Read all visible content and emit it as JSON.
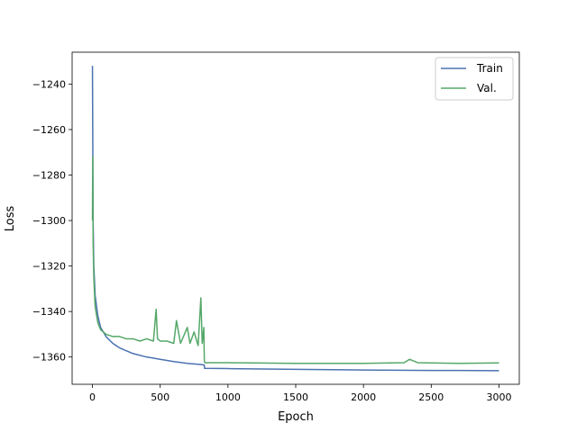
{
  "chart_data": {
    "type": "line",
    "title": "",
    "xlabel": "Epoch",
    "ylabel": "Loss",
    "xlim": [
      -150,
      3150
    ],
    "ylim": [
      -1372,
      -1226
    ],
    "xticks": [
      0,
      500,
      1000,
      1500,
      2000,
      2500,
      3000
    ],
    "xtick_labels": [
      "0",
      "500",
      "1000",
      "1500",
      "2000",
      "2500",
      "3000"
    ],
    "yticks": [
      -1240,
      -1260,
      -1280,
      -1300,
      -1320,
      -1340,
      -1360
    ],
    "ytick_labels": [
      "−1240",
      "−1260",
      "−1280",
      "−1300",
      "−1320",
      "−1340",
      "−1360"
    ],
    "legend_position": "top-right",
    "grid": false,
    "series": [
      {
        "name": "Train",
        "color": "#4c72b0",
        "x": [
          0,
          2,
          5,
          10,
          20,
          40,
          60,
          100,
          150,
          200,
          300,
          400,
          500,
          600,
          700,
          800,
          825,
          827,
          1000,
          1500,
          2000,
          2500,
          3000
        ],
        "y": [
          -1232,
          -1260,
          -1300,
          -1320,
          -1333,
          -1342,
          -1347,
          -1351,
          -1354,
          -1356,
          -1358.5,
          -1360,
          -1361,
          -1362,
          -1362.8,
          -1363.3,
          -1363.5,
          -1365,
          -1365.1,
          -1365.4,
          -1365.7,
          -1365.9,
          -1366
        ]
      },
      {
        "name": "Val.",
        "color": "#55a868",
        "x": [
          0,
          2,
          5,
          10,
          20,
          40,
          60,
          80,
          100,
          150,
          200,
          250,
          300,
          350,
          400,
          450,
          470,
          480,
          500,
          550,
          600,
          620,
          650,
          700,
          720,
          750,
          780,
          800,
          810,
          822,
          824,
          826,
          830,
          1000,
          1500,
          2000,
          2300,
          2340,
          2400,
          2700,
          3000
        ],
        "y": [
          -1300,
          -1272,
          -1310,
          -1325,
          -1338,
          -1345,
          -1348,
          -1349,
          -1350,
          -1351,
          -1351,
          -1352,
          -1352,
          -1353,
          -1352,
          -1353,
          -1339,
          -1352,
          -1353,
          -1353,
          -1354,
          -1344,
          -1354,
          -1347,
          -1354,
          -1349,
          -1355,
          -1334,
          -1354,
          -1347,
          -1356,
          -1362,
          -1362.5,
          -1362.5,
          -1362.8,
          -1362.8,
          -1362.5,
          -1361,
          -1362.5,
          -1362.8,
          -1362.6
        ]
      }
    ]
  }
}
